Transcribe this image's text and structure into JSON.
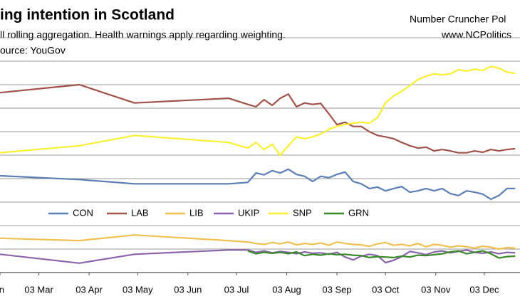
{
  "chart_data": {
    "type": "line",
    "title": "ing intention in Scotland",
    "subtitle": "ll rolling aggregation. Health warnings apply regarding weighting.",
    "source": "ource: YouGov",
    "credit": [
      "Number Cruncher Pol",
      "www.NCPolitics"
    ],
    "x": [
      "07 Feb",
      "28 Mar",
      "01 May",
      "28 Jun",
      "10 Jul",
      "15 Jul",
      "20 Jul",
      "25 Jul",
      "30 Jul",
      "04 Aug",
      "09 Aug",
      "14 Aug",
      "19 Aug",
      "24 Aug",
      "29 Aug",
      "03 Sep",
      "08 Sep",
      "13 Sep",
      "18 Sep",
      "23 Sep",
      "28 Sep",
      "03 Oct",
      "08 Oct",
      "13 Oct",
      "18 Oct",
      "23 Oct",
      "28 Oct",
      "02 Nov",
      "07 Nov",
      "12 Nov",
      "17 Nov",
      "22 Nov",
      "27 Nov",
      "02 Dec",
      "07 Dec",
      "12 Dec",
      "17 Dec",
      "22 Dec"
    ],
    "xlim": [
      "07 Feb",
      "25 Dec"
    ],
    "xticks": [
      {
        "value": "07 Feb",
        "label": "n"
      },
      {
        "value": "03 Mar",
        "label": "03 Mar"
      },
      {
        "value": "03 Apr",
        "label": "03 Apr"
      },
      {
        "value": "03 May",
        "label": "03 May"
      },
      {
        "value": "03 Jun",
        "label": "03 Jun"
      },
      {
        "value": "03 Jul",
        "label": "03 Jul"
      },
      {
        "value": "03 Aug",
        "label": "03 Aug"
      },
      {
        "value": "03 Sep",
        "label": "03 Sep"
      },
      {
        "value": "03 Oct",
        "label": "03 Oct"
      },
      {
        "value": "03 Nov",
        "label": "03 Nov"
      },
      {
        "value": "03 Dec",
        "label": "03 Dec"
      }
    ],
    "ylim": [
      0,
      50
    ],
    "yticks": [
      0,
      5,
      10,
      15,
      20,
      25,
      30,
      35,
      40,
      45,
      50
    ],
    "grid": true,
    "legend": "inside",
    "series": [
      {
        "name": "CON",
        "color": "#5b7fb4",
        "values": [
          20.6,
          19.8,
          18.9,
          18.9,
          19.2,
          21.2,
          20.8,
          21.7,
          21.2,
          22,
          20.9,
          20.5,
          19.4,
          20.5,
          20.2,
          20.9,
          21.4,
          19.4,
          18.9,
          17.9,
          18.2,
          17.4,
          17.9,
          18.3,
          17.1,
          17.4,
          17.9,
          17.4,
          17.9,
          16.8,
          16.4,
          17.4,
          17.1,
          16.7,
          15.6,
          16.4,
          17.9,
          17.9
        ]
      },
      {
        "name": "LAB",
        "color": "#a0524a",
        "values": [
          38.3,
          40,
          36.1,
          37.1,
          35.8,
          35.3,
          36.8,
          35.6,
          37.1,
          38,
          35.3,
          36.1,
          35.8,
          36,
          33.8,
          31.5,
          32,
          31.1,
          31.1,
          30,
          29.2,
          28.9,
          28.5,
          27.7,
          27,
          26.5,
          26.7,
          25.9,
          26.2,
          25.9,
          25.5,
          25.5,
          25.9,
          25.6,
          26.2,
          25.9,
          26.2,
          26.4
        ]
      },
      {
        "name": "LIB",
        "color": "#f0c050",
        "values": [
          7.3,
          6.8,
          8,
          6.8,
          6.5,
          6.2,
          6.0,
          6.4,
          6.1,
          6.5,
          5.9,
          6.2,
          6.0,
          6.3,
          5.8,
          6.5,
          6.2,
          6.0,
          5.9,
          5.6,
          6.1,
          6.4,
          5.8,
          6.0,
          5.7,
          6.2,
          5.5,
          6.0,
          5.8,
          5.4,
          5.7,
          5.5,
          5.2,
          5.6,
          5.4,
          5.0,
          5.3,
          5.2
        ]
      },
      {
        "name": "UKIP",
        "color": "#8a64a8",
        "values": [
          3.9,
          2.0,
          3.9,
          4.8,
          4.8,
          4.3,
          4.6,
          4.2,
          4.5,
          4.3,
          4.0,
          4.4,
          4.1,
          4.2,
          3.9,
          4.3,
          3.3,
          2.7,
          3.5,
          3.9,
          3.6,
          2.1,
          2.6,
          3.4,
          4.5,
          4.2,
          3.8,
          4.4,
          4.6,
          4.2,
          4.5,
          4.8,
          4.3,
          4.1,
          4.4,
          4.0,
          4.3,
          4.2
        ]
      },
      {
        "name": "SNP",
        "color": "#f8f030",
        "values": [
          25.5,
          27,
          29.2,
          27.7,
          26.5,
          27.7,
          26.2,
          27.3,
          25,
          27,
          28.9,
          28.5,
          28.9,
          29.5,
          30.5,
          31.1,
          31.5,
          31.8,
          32,
          31.8,
          33,
          36.1,
          37.6,
          38.6,
          39.8,
          41.1,
          41.8,
          42.3,
          42.1,
          42.3,
          43.2,
          42.9,
          43.3,
          43,
          43.9,
          43.5,
          42.7,
          42.4
        ]
      },
      {
        "name": "GRN",
        "color": "#3a8a2a",
        "values": [
          null,
          null,
          null,
          null,
          4.6,
          4.0,
          4.3,
          4.1,
          4.3,
          4.0,
          4.4,
          3.6,
          3.9,
          3.7,
          4.0,
          3.8,
          3.9,
          3.7,
          3.6,
          3.2,
          3.4,
          3.3,
          3.2,
          3.5,
          3.3,
          3.7,
          3.6,
          3.8,
          4.0,
          4.4,
          4.6,
          4.0,
          4.3,
          4.6,
          4.0,
          3.1,
          3.4,
          3.5
        ]
      }
    ]
  }
}
